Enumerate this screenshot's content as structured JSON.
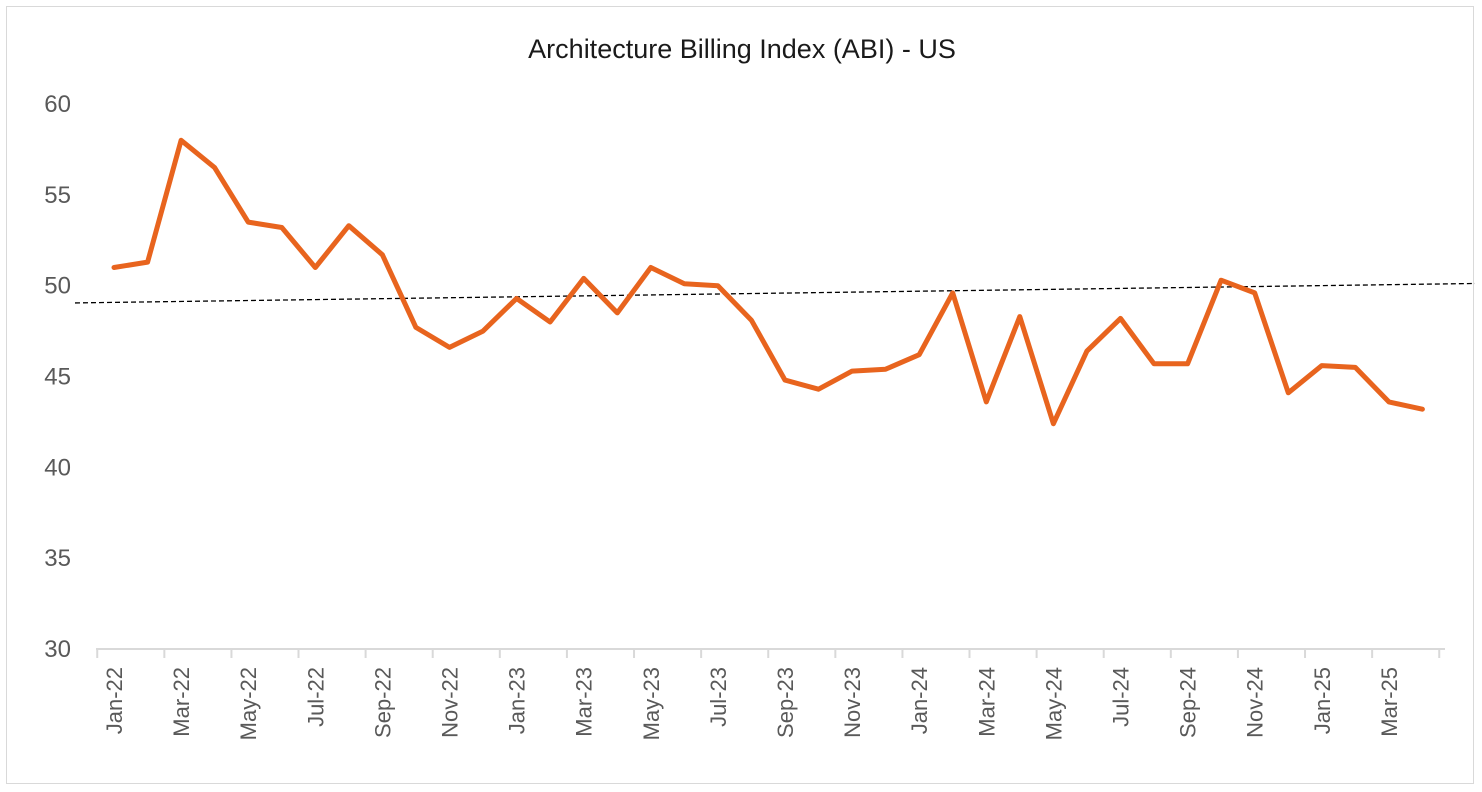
{
  "chart_data": {
    "type": "line",
    "title": "Architecture Billing Index (ABI) - US",
    "xlabel": "",
    "ylabel": "",
    "ylim": [
      30,
      60
    ],
    "yticks": [
      30,
      35,
      40,
      45,
      50,
      55,
      60
    ],
    "x": [
      "Jan-22",
      "Feb-22",
      "Mar-22",
      "Apr-22",
      "May-22",
      "Jun-22",
      "Jul-22",
      "Aug-22",
      "Sep-22",
      "Oct-22",
      "Nov-22",
      "Dec-22",
      "Jan-23",
      "Feb-23",
      "Mar-23",
      "Apr-23",
      "May-23",
      "Jun-23",
      "Jul-23",
      "Aug-23",
      "Sep-23",
      "Oct-23",
      "Nov-23",
      "Dec-23",
      "Jan-24",
      "Feb-24",
      "Mar-24",
      "Apr-24",
      "May-24",
      "Jun-24",
      "Jul-24",
      "Aug-24",
      "Sep-24",
      "Oct-24",
      "Nov-24",
      "Dec-24",
      "Jan-25",
      "Feb-25",
      "Mar-25",
      "Apr-25"
    ],
    "xtick_labels": [
      "Jan-22",
      "Mar-22",
      "May-22",
      "Jul-22",
      "Sep-22",
      "Nov-22",
      "Jan-23",
      "Mar-23",
      "May-23",
      "Jul-23",
      "Sep-23",
      "Nov-23",
      "Jan-24",
      "Mar-24",
      "May-24",
      "Jul-24",
      "Sep-24",
      "Nov-24",
      "Jan-25",
      "Mar-25"
    ],
    "series": [
      {
        "name": "ABI",
        "color": "#E8641E",
        "values": [
          51.0,
          51.3,
          58.0,
          56.5,
          53.5,
          53.2,
          51.0,
          53.3,
          51.7,
          47.7,
          46.6,
          47.5,
          49.3,
          48.0,
          50.4,
          48.5,
          51.0,
          50.1,
          50.0,
          48.1,
          44.8,
          44.3,
          45.3,
          45.4,
          46.2,
          49.6,
          43.6,
          48.3,
          42.4,
          46.4,
          48.2,
          45.7,
          45.7,
          50.3,
          49.6,
          44.1,
          45.6,
          45.5,
          43.6,
          43.2
        ]
      }
    ],
    "trendline": {
      "name": "Linear trend",
      "style": "dashed",
      "color": "#000000",
      "start_value": 49.05,
      "end_value": 50.12
    },
    "grid": false,
    "legend": "none"
  }
}
